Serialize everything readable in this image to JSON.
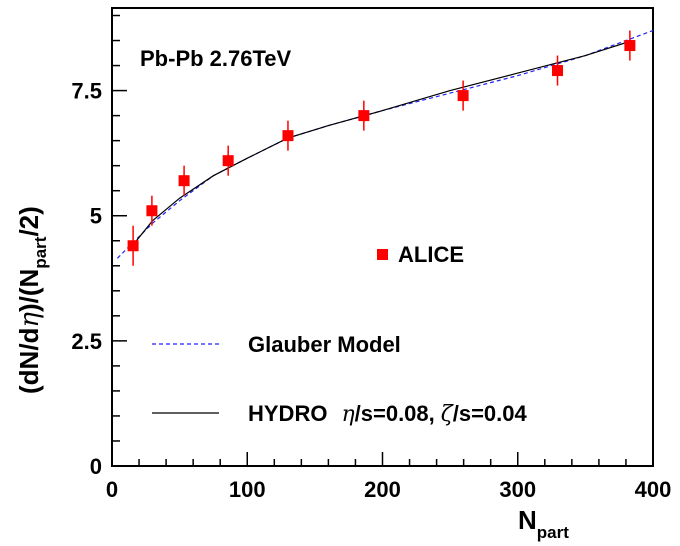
{
  "chart_data": {
    "type": "scatter",
    "title": "",
    "annotation": "Pb-Pb  2.76TeV",
    "xlabel": {
      "base": "N",
      "sub": "part"
    },
    "ylabel": {
      "pre": "(dN/d",
      "eta": "η",
      "mid": ")/(N",
      "sub": "part",
      "post": "/2)"
    },
    "xlim": [
      0,
      400
    ],
    "ylim": [
      0,
      9.15
    ],
    "x_ticks": [
      0,
      100,
      200,
      300,
      400
    ],
    "x_tick_labels": [
      "0",
      "100",
      "200",
      "300",
      "400"
    ],
    "y_ticks": [
      0,
      2.5,
      5,
      7.5
    ],
    "y_tick_labels": [
      "0",
      "2.5",
      "5",
      "7.5"
    ],
    "grid": false,
    "legend_position": "inside-right",
    "colors": {
      "data": "#ff0000",
      "glauber": "#2222ff",
      "hydro": "#000000"
    },
    "series": [
      {
        "name": "ALICE",
        "kind": "points",
        "x": [
          15.6,
          29.5,
          53.3,
          85.9,
          130.1,
          186.2,
          259.6,
          329.4,
          382.9
        ],
        "y": [
          4.4,
          5.1,
          5.7,
          6.1,
          6.6,
          7.0,
          7.4,
          7.9,
          8.4
        ],
        "err": [
          0.4,
          0.3,
          0.3,
          0.3,
          0.3,
          0.3,
          0.3,
          0.3,
          0.3
        ]
      },
      {
        "name": "Glauber Model",
        "kind": "dashed-line",
        "x": [
          4,
          15,
          30,
          50,
          75,
          100,
          130,
          160,
          200,
          250,
          300,
          350,
          400
        ],
        "y": [
          4.15,
          4.45,
          4.85,
          5.3,
          5.8,
          6.15,
          6.55,
          6.8,
          7.1,
          7.45,
          7.8,
          8.2,
          8.7
        ]
      },
      {
        "name": "HYDRO",
        "label_rest": "/s=0.08,",
        "label_zeta": "/s=0.04",
        "kind": "solid-line",
        "x": [
          15,
          30,
          50,
          75,
          100,
          130,
          160,
          200,
          250,
          300,
          350,
          385
        ],
        "y": [
          4.4,
          4.9,
          5.35,
          5.8,
          6.15,
          6.55,
          6.8,
          7.1,
          7.5,
          7.85,
          8.2,
          8.5
        ]
      }
    ]
  }
}
